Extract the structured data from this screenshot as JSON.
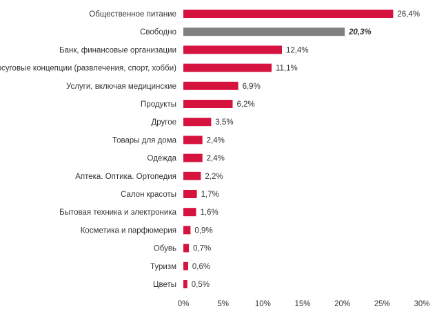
{
  "chart_data": {
    "type": "bar",
    "orientation": "horizontal",
    "title": "",
    "xlabel": "",
    "ylabel": "",
    "categories": [
      "Общественное питание",
      "Свободно",
      "Банк, финансовые организации",
      "Досуговые концепции (развлечения, спорт, хобби)",
      "Услуги, включая медицинские",
      "Продукты",
      "Другое",
      "Товары для дома",
      "Одежда",
      "Аптека. Оптика. Ортопедия",
      "Салон красоты",
      "Бытовая техника и электроника",
      "Косметика и парфюмерия",
      "Обувь",
      "Туризм",
      "Цветы"
    ],
    "values": [
      26.4,
      20.3,
      12.4,
      11.1,
      6.9,
      6.2,
      3.5,
      2.4,
      2.4,
      2.2,
      1.7,
      1.6,
      0.9,
      0.7,
      0.6,
      0.5
    ],
    "value_labels": [
      "26,4%",
      "20,3%",
      "12,4%",
      "11,1%",
      "6,9%",
      "6,2%",
      "3,5%",
      "2,4%",
      "2,4%",
      "2,2%",
      "1,7%",
      "1,6%",
      "0,9%",
      "0,7%",
      "0,6%",
      "0,5%"
    ],
    "highlight_index": 1,
    "xlim": [
      0,
      30
    ],
    "xticks": [
      0,
      5,
      10,
      15,
      20,
      25,
      30
    ],
    "xtick_labels": [
      "0%",
      "5%",
      "10%",
      "15%",
      "20%",
      "25%",
      "30%"
    ],
    "grid": false,
    "legend": "none",
    "colors": {
      "bar": "#d6123f",
      "highlight_bar": "#7f7f7f",
      "text": "#333333"
    }
  }
}
